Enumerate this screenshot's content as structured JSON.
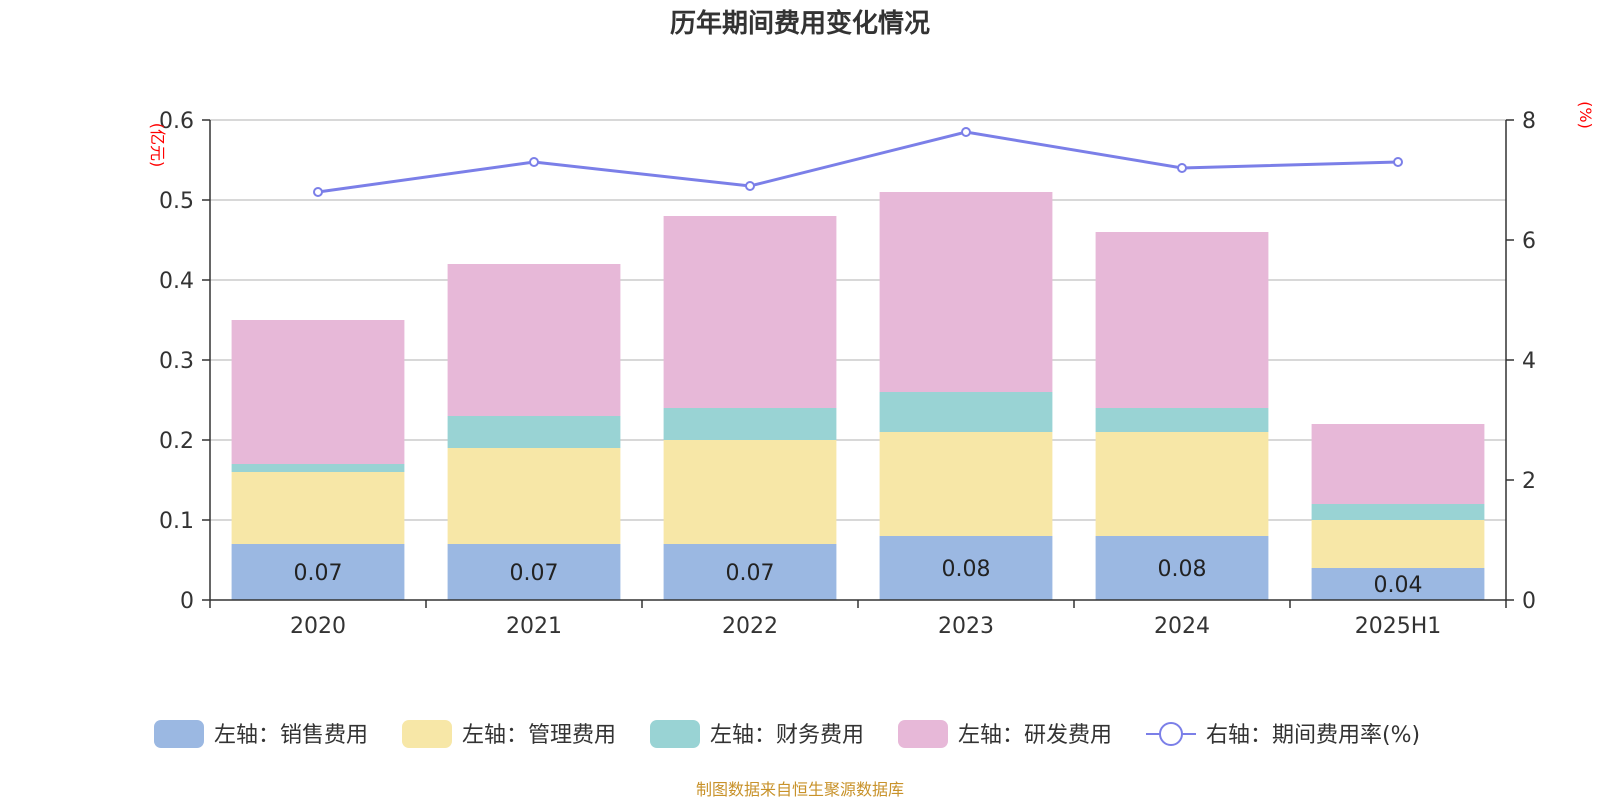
{
  "chart_data": {
    "type": "bar",
    "title": "历年期间费用变化情况",
    "categories": [
      "2020",
      "2021",
      "2022",
      "2023",
      "2024",
      "2025H1"
    ],
    "left_axis": {
      "unit": "(亿元)",
      "ylim": [
        0,
        0.6
      ],
      "ticks": [
        "0",
        "0.1",
        "0.2",
        "0.3",
        "0.4",
        "0.5",
        "0.6"
      ]
    },
    "right_axis": {
      "unit": "(%)",
      "ylim": [
        0,
        8
      ],
      "ticks": [
        "0",
        "2",
        "4",
        "6",
        "8"
      ]
    },
    "series": [
      {
        "name": "左轴：销售费用",
        "type": "bar",
        "stack": true,
        "color": "#9bb8e2",
        "values": [
          0.07,
          0.07,
          0.07,
          0.08,
          0.08,
          0.04
        ],
        "labels": [
          "0.07",
          "0.07",
          "0.07",
          "0.08",
          "0.08",
          "0.04"
        ]
      },
      {
        "name": "左轴：管理费用",
        "type": "bar",
        "stack": true,
        "color": "#f7e7a7",
        "values": [
          0.09,
          0.12,
          0.13,
          0.13,
          0.13,
          0.06
        ]
      },
      {
        "name": "左轴：财务费用",
        "type": "bar",
        "stack": true,
        "color": "#99d3d4",
        "values": [
          0.01,
          0.04,
          0.04,
          0.05,
          0.03,
          0.02
        ]
      },
      {
        "name": "左轴：研发费用",
        "type": "bar",
        "stack": true,
        "color": "#e7b8d8",
        "values": [
          0.18,
          0.19,
          0.24,
          0.25,
          0.22,
          0.1
        ]
      },
      {
        "name": "右轴：期间费用率(%)",
        "type": "line",
        "axis": "right",
        "color": "#7b7fe8",
        "values": [
          6.8,
          7.3,
          6.9,
          7.8,
          7.2,
          7.3
        ]
      }
    ],
    "grid": true,
    "legend_position": "bottom"
  },
  "source": "制图数据来自恒生聚源数据库"
}
